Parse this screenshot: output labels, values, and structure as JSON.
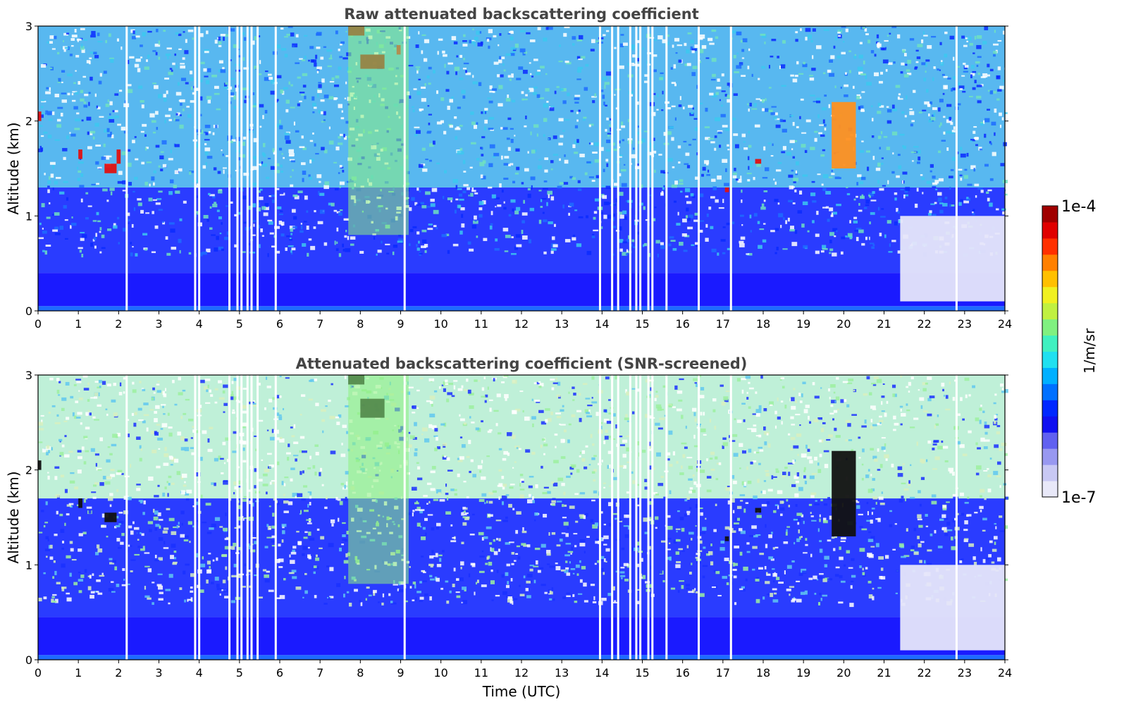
{
  "chart_data": [
    {
      "type": "heatmap",
      "title": "Raw attenuated backscattering coefficient",
      "xlabel": "",
      "ylabel": "Altitude (km)",
      "xlim": [
        0,
        24
      ],
      "ylim": [
        0,
        3
      ],
      "xticks": [
        "0",
        "1",
        "2",
        "3",
        "4",
        "5",
        "6",
        "7",
        "8",
        "9",
        "10",
        "11",
        "12",
        "13",
        "14",
        "15",
        "16",
        "17",
        "18",
        "19",
        "20",
        "21",
        "22",
        "23",
        "24"
      ],
      "yticks": [
        "0",
        "1",
        "2",
        "3"
      ],
      "background_profile": [
        {
          "alt_km_max": 0.05,
          "level": "near-ground blue"
        },
        {
          "alt_km_max": 0.4,
          "level": "dense blue"
        },
        {
          "alt_km_max": 1.3,
          "level": "speckled blue"
        },
        {
          "alt_km_max": 3.0,
          "level": "speckled cyan-blue"
        }
      ],
      "features": [
        {
          "name": "cloud",
          "time_utc": [
            1.65,
            1.95
          ],
          "alt_km": [
            1.45,
            1.55
          ],
          "level": "high (red)"
        },
        {
          "name": "cloud",
          "time_utc": [
            1.95,
            2.05
          ],
          "alt_km": [
            1.55,
            1.7
          ],
          "level": "high (red)"
        },
        {
          "name": "cloud",
          "time_utc": [
            1.0,
            1.1
          ],
          "alt_km": [
            1.6,
            1.7
          ],
          "level": "high (red)"
        },
        {
          "name": "cloud",
          "time_utc": [
            0.0,
            0.08
          ],
          "alt_km": [
            2.0,
            2.1
          ],
          "level": "high (red)"
        },
        {
          "name": "cloud",
          "time_utc": [
            8.0,
            8.6
          ],
          "alt_km": [
            2.55,
            2.7
          ],
          "level": "high (dark red)"
        },
        {
          "name": "cloud",
          "time_utc": [
            7.7,
            8.1
          ],
          "alt_km": [
            2.9,
            3.0
          ],
          "level": "high (dark red)"
        },
        {
          "name": "cloud",
          "time_utc": [
            8.9,
            9.0
          ],
          "alt_km": [
            2.7,
            2.8
          ],
          "level": "high (red)"
        },
        {
          "name": "cloud",
          "time_utc": [
            17.05,
            17.15
          ],
          "alt_km": [
            1.25,
            1.3
          ],
          "level": "high (red)"
        },
        {
          "name": "cloud",
          "time_utc": [
            17.8,
            17.95
          ],
          "alt_km": [
            1.55,
            1.6
          ],
          "level": "high (red)"
        },
        {
          "name": "cloud",
          "time_utc": [
            19.7,
            20.3
          ],
          "alt_km": [
            1.5,
            2.2
          ],
          "level": "high (orange-red)"
        },
        {
          "name": "clear-air region",
          "time_utc": [
            21.4,
            24.0
          ],
          "alt_km": [
            0.1,
            1.0
          ],
          "level": "very low (lavender/white)"
        },
        {
          "name": "elevated signal band",
          "time_utc": [
            7.7,
            9.2
          ],
          "alt_km": [
            0.8,
            3.0
          ],
          "level": "moderate (green-yellow)"
        }
      ],
      "data_gaps_utc": [
        2.2,
        3.9,
        4.0,
        4.75,
        4.95,
        5.05,
        5.2,
        5.3,
        5.45,
        5.9,
        9.1,
        13.95,
        14.25,
        14.4,
        14.7,
        14.85,
        14.95,
        15.15,
        15.25,
        15.6,
        16.4,
        17.2,
        22.8
      ]
    },
    {
      "type": "heatmap",
      "title": "Attenuated backscattering coefficient (SNR-screened)",
      "xlabel": "Time (UTC)",
      "ylabel": "Altitude (km)",
      "xlim": [
        0,
        24
      ],
      "ylim": [
        0,
        3
      ],
      "xticks": [
        "0",
        "1",
        "2",
        "3",
        "4",
        "5",
        "6",
        "7",
        "8",
        "9",
        "10",
        "11",
        "12",
        "13",
        "14",
        "15",
        "16",
        "17",
        "18",
        "19",
        "20",
        "21",
        "22",
        "23",
        "24"
      ],
      "yticks": [
        "0",
        "1",
        "2",
        "3"
      ],
      "background_profile": [
        {
          "alt_km_max": 0.05,
          "level": "near-ground blue"
        },
        {
          "alt_km_max": 0.45,
          "level": "solid blue"
        },
        {
          "alt_km_max": 1.7,
          "level": "mottled blue"
        },
        {
          "alt_km_max": 3.0,
          "level": "sparse green-cyan"
        }
      ],
      "features": [
        {
          "name": "cloud (saturated)",
          "time_utc": [
            1.65,
            1.95
          ],
          "alt_km": [
            1.45,
            1.55
          ],
          "level": "saturated (black)"
        },
        {
          "name": "cloud (saturated)",
          "time_utc": [
            1.0,
            1.1
          ],
          "alt_km": [
            1.6,
            1.7
          ],
          "level": "saturated (black)"
        },
        {
          "name": "cloud (saturated)",
          "time_utc": [
            0.0,
            0.08
          ],
          "alt_km": [
            2.0,
            2.1
          ],
          "level": "saturated (black)"
        },
        {
          "name": "cloud (saturated)",
          "time_utc": [
            8.0,
            8.6
          ],
          "alt_km": [
            2.55,
            2.75
          ],
          "level": "saturated (black)"
        },
        {
          "name": "cloud",
          "time_utc": [
            7.7,
            8.1
          ],
          "alt_km": [
            2.9,
            3.0
          ],
          "level": "high (red/black)"
        },
        {
          "name": "cloud (saturated)",
          "time_utc": [
            17.05,
            17.15
          ],
          "alt_km": [
            1.25,
            1.3
          ],
          "level": "saturated (black)"
        },
        {
          "name": "cloud (saturated)",
          "time_utc": [
            17.8,
            17.95
          ],
          "alt_km": [
            1.55,
            1.6
          ],
          "level": "saturated (black)"
        },
        {
          "name": "cloud",
          "time_utc": [
            19.7,
            20.3
          ],
          "alt_km": [
            1.3,
            2.2
          ],
          "level": "high (orange-red/black)"
        },
        {
          "name": "clear-air region",
          "time_utc": [
            21.4,
            24.0
          ],
          "alt_km": [
            0.1,
            1.0
          ],
          "level": "very low (lavender/white)"
        },
        {
          "name": "elevated signal band",
          "time_utc": [
            7.7,
            9.2
          ],
          "alt_km": [
            0.8,
            3.0
          ],
          "level": "moderate (green-yellow)"
        }
      ],
      "data_gaps_utc": [
        2.2,
        3.9,
        4.0,
        4.75,
        4.95,
        5.05,
        5.2,
        5.3,
        5.45,
        5.9,
        9.1,
        13.95,
        14.25,
        14.4,
        14.7,
        14.85,
        14.95,
        15.15,
        15.25,
        15.6,
        16.4,
        17.2,
        22.8
      ]
    }
  ],
  "colorbar": {
    "label": "1/m/sr",
    "max_label": "1e-4",
    "min_label": "1e-7",
    "colors": [
      "#e8e8f8",
      "#c8c8f4",
      "#9898f0",
      "#6060f0",
      "#1010f0",
      "#0028ff",
      "#0070ff",
      "#00b0ff",
      "#20e0f0",
      "#40f0c0",
      "#80f080",
      "#c0f040",
      "#f0f020",
      "#ffc000",
      "#ff8000",
      "#ff3000",
      "#e00000",
      "#a00000"
    ]
  }
}
